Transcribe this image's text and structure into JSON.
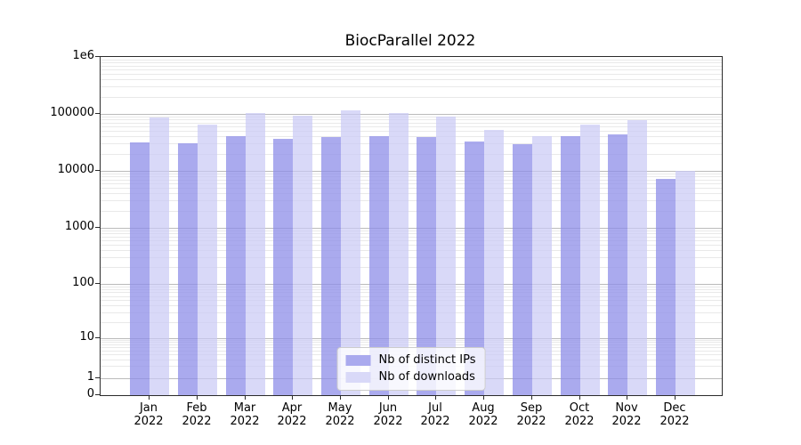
{
  "chart_data": {
    "type": "bar",
    "title": "BiocParallel 2022",
    "categories": [
      "Jan 2022",
      "Feb 2022",
      "Mar 2022",
      "Apr 2022",
      "May 2022",
      "Jun 2022",
      "Jul 2022",
      "Aug 2022",
      "Sep 2022",
      "Oct 2022",
      "Nov 2022",
      "Dec 2022"
    ],
    "series": [
      {
        "name": "Nb of distinct IPs",
        "color": "rgba(142,142,232,0.75)",
        "legend_color": "#aaaaee",
        "values": [
          32000,
          31000,
          40000,
          37000,
          39000,
          41000,
          39000,
          33000,
          29000,
          41000,
          44000,
          7200
        ]
      },
      {
        "name": "Nb of downloads",
        "color": "rgba(201,201,245,0.7)",
        "legend_color": "#d9d9f8",
        "values": [
          88000,
          64000,
          103000,
          92000,
          114000,
          102000,
          91000,
          52000,
          41000,
          66000,
          79000,
          10000
        ]
      }
    ],
    "yscale": "symlog",
    "ylim": [
      0,
      1000000
    ],
    "yticks": [
      0,
      1,
      10,
      100,
      1000,
      10000,
      100000,
      1000000
    ],
    "ytick_labels": [
      "0",
      "1",
      "10",
      "100",
      "1000",
      "10000",
      "100000",
      "1e6"
    ],
    "xlabel": "",
    "ylabel": "",
    "grid": true,
    "legend_position": "lower center"
  }
}
